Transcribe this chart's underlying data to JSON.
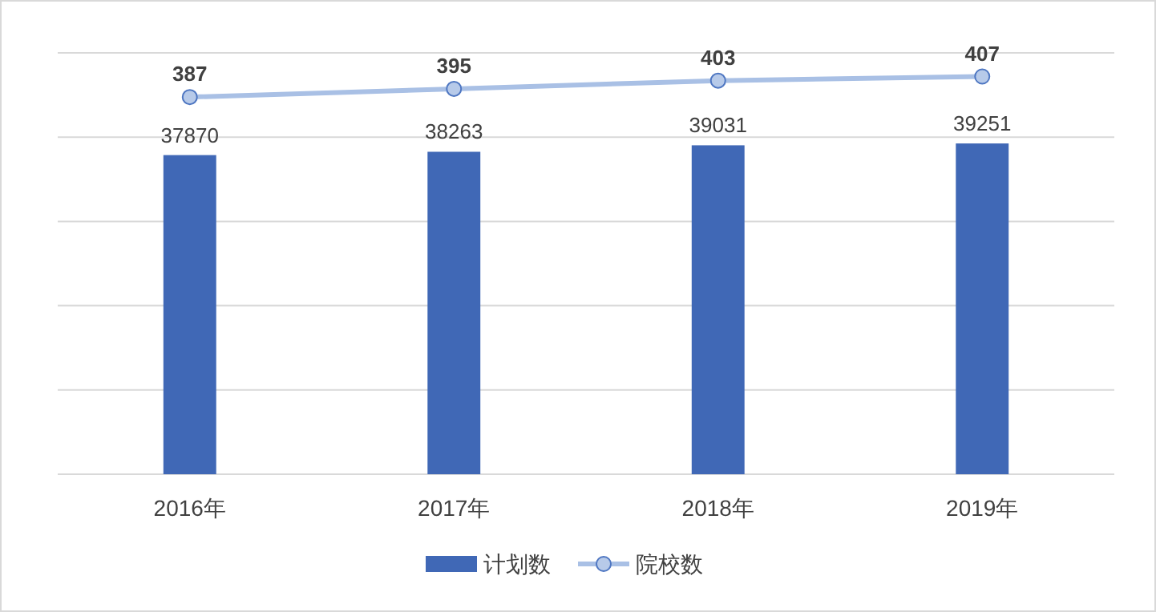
{
  "chart_data": {
    "type": "bar",
    "categories": [
      "2016年",
      "2017年",
      "2018年",
      "2019年"
    ],
    "series": [
      {
        "name": "计划数",
        "color": "#4068b6",
        "values": [
          37870,
          38263,
          39031,
          39251
        ]
      },
      {
        "name": "院校数",
        "type": "line",
        "axis": "y2",
        "color": "#a9c0e5",
        "marker": "circle",
        "values": [
          387,
          395,
          403,
          407
        ]
      }
    ],
    "ylim": [
      0,
      50000
    ],
    "yticks": [
      0,
      10000,
      20000,
      30000,
      40000,
      50000
    ],
    "y2lim": [
      20,
      430
    ],
    "tick_labels": "x",
    "grid": "y",
    "legend": "bottom",
    "data_labels": true,
    "line_style": "solid"
  }
}
